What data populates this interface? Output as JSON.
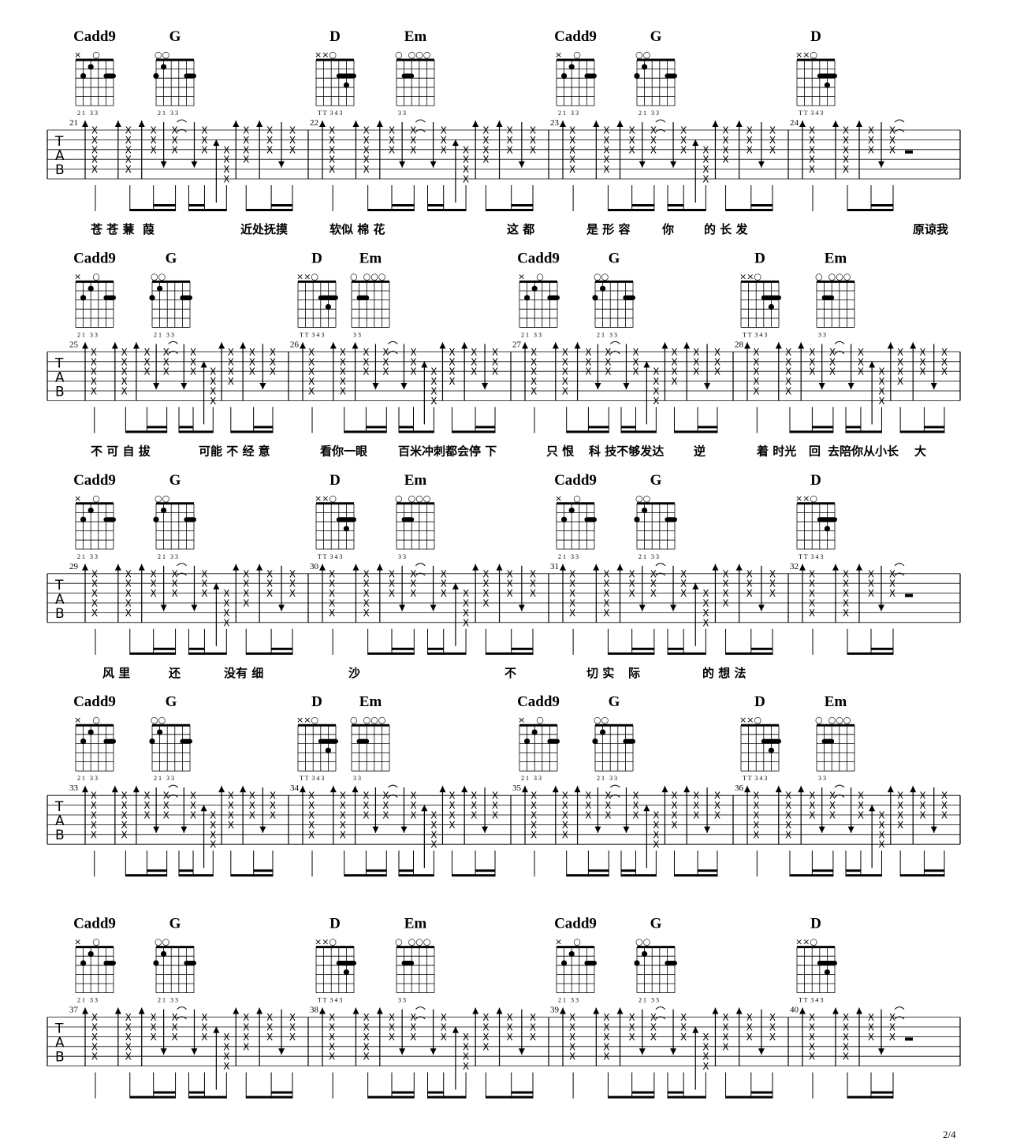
{
  "tab_clef": [
    "T",
    "A",
    "B"
  ],
  "page_number": "2/4",
  "chord_shapes": {
    "Cadd9": {
      "markers": "×    ○",
      "fingers": "2 1   3 3",
      "dots": [
        [
          1,
          2
        ],
        [
          2,
          1
        ]
      ],
      "bar": [
        4,
        5,
        2
      ]
    },
    "G": {
      "markers": "○○",
      "fingers": "2 1   3 3",
      "dots": [
        [
          0,
          2
        ],
        [
          1,
          1
        ]
      ],
      "bar": [
        4,
        5,
        2
      ]
    },
    "D": {
      "markers": "××○",
      "fingers": "T T  3 4 3",
      "dots": [
        [
          4,
          3
        ]
      ],
      "bar": [
        3,
        5,
        2
      ]
    },
    "Em": {
      "markers": "○  ○○○",
      "fingers": "3 3",
      "dots": [],
      "bar": [
        1,
        2,
        2
      ]
    }
  },
  "systems": [
    {
      "measures": [
        "21",
        "22",
        "23",
        "24"
      ],
      "chords": [
        "Cadd9",
        "G",
        "D",
        "Em",
        "Cadd9",
        "G",
        "D"
      ],
      "rest_last": true,
      "lyrics": [
        "苍 苍 蒹  葭",
        "近处抚摸",
        "软似 棉 花",
        "这 都",
        "是 形 容",
        "你",
        "的 长 发",
        "原谅我"
      ]
    },
    {
      "measures": [
        "25",
        "26",
        "27",
        "28"
      ],
      "chords": [
        "Cadd9",
        "G",
        "D",
        "Em",
        "Cadd9",
        "G",
        "D",
        "Em"
      ],
      "rest_last": false,
      "lyrics": [
        "不 可 自 拔",
        "可能 不 经 意",
        "看你一眼",
        "百米冲刺都会停 下",
        "只 恨",
        "科 技不够发达",
        "逆",
        "着 时光",
        "回",
        "去陪你从小长",
        "大"
      ]
    },
    {
      "measures": [
        "29",
        "30",
        "31",
        "32"
      ],
      "chords": [
        "Cadd9",
        "G",
        "D",
        "Em",
        "Cadd9",
        "G",
        "D"
      ],
      "rest_last": true,
      "lyrics": [
        "风 里",
        "还",
        "没有 细",
        "沙",
        "不",
        "切 实",
        "际",
        "的 想 法"
      ]
    },
    {
      "measures": [
        "33",
        "34",
        "35",
        "36"
      ],
      "chords": [
        "Cadd9",
        "G",
        "D",
        "Em",
        "Cadd9",
        "G",
        "D",
        "Em"
      ],
      "rest_last": false,
      "lyrics": []
    },
    {
      "measures": [
        "37",
        "38",
        "39",
        "40"
      ],
      "chords": [
        "Cadd9",
        "G",
        "D",
        "Em",
        "Cadd9",
        "G",
        "D"
      ],
      "rest_last": true,
      "lyrics": []
    }
  ]
}
